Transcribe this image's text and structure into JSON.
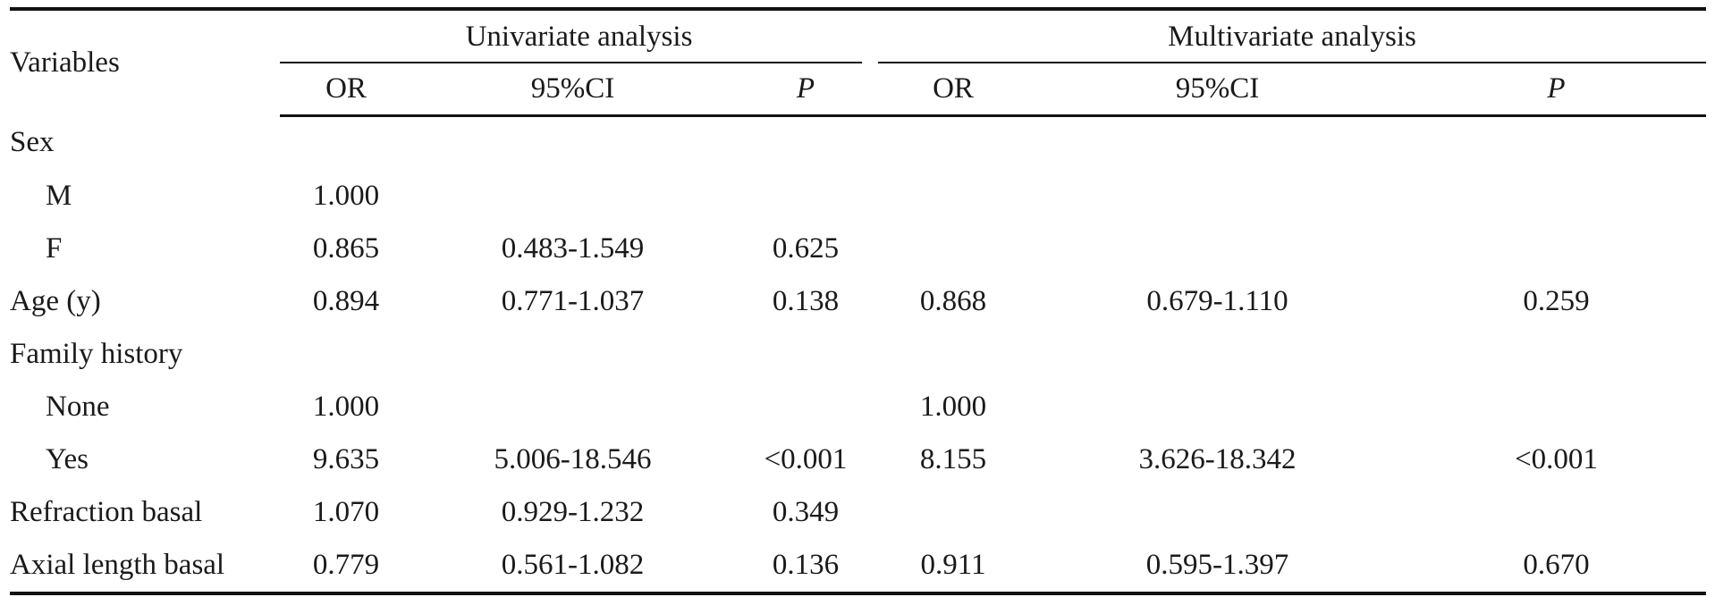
{
  "table": {
    "header": {
      "variables": "Variables",
      "univariate": "Univariate analysis",
      "multivariate": "Multivariate analysis",
      "sub": [
        "OR",
        "95%CI",
        "P",
        "OR",
        "95%CI",
        "P"
      ]
    },
    "rows": [
      {
        "label": "Sex",
        "sub": false,
        "cells": [
          "",
          "",
          "",
          "",
          "",
          ""
        ]
      },
      {
        "label": "M",
        "sub": true,
        "cells": [
          "1.000",
          "",
          "",
          "",
          "",
          ""
        ]
      },
      {
        "label": "F",
        "sub": true,
        "cells": [
          "0.865",
          "0.483-1.549",
          "0.625",
          "",
          "",
          ""
        ]
      },
      {
        "label": "Age (y)",
        "sub": false,
        "cells": [
          "0.894",
          "0.771-1.037",
          "0.138",
          "0.868",
          "0.679-1.110",
          "0.259"
        ]
      },
      {
        "label": "Family history",
        "sub": false,
        "cells": [
          "",
          "",
          "",
          "",
          "",
          ""
        ]
      },
      {
        "label": "None",
        "sub": true,
        "cells": [
          "1.000",
          "",
          "",
          "1.000",
          "",
          ""
        ]
      },
      {
        "label": "Yes",
        "sub": true,
        "cells": [
          "9.635",
          "5.006-18.546",
          "<0.001",
          "8.155",
          "3.626-18.342",
          "<0.001"
        ]
      },
      {
        "label": "Refraction basal",
        "sub": false,
        "cells": [
          "1.070",
          "0.929-1.232",
          "0.349",
          "",
          "",
          ""
        ]
      },
      {
        "label": "Axial length basal",
        "sub": false,
        "cells": [
          "0.779",
          "0.561-1.082",
          "0.136",
          "0.911",
          "0.595-1.397",
          "0.670"
        ]
      }
    ]
  }
}
